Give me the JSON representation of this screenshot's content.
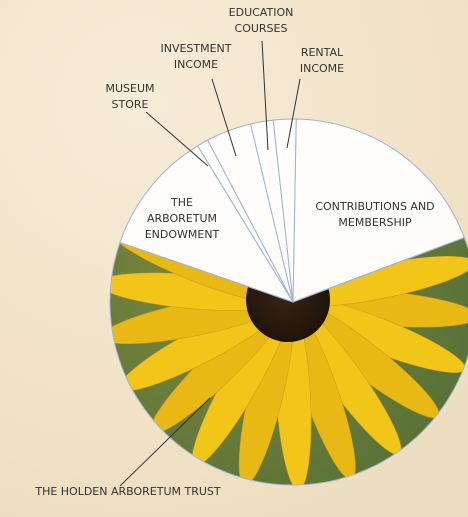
{
  "chart_data": {
    "type": "pie",
    "categories": [
      "CONTRIBUTIONS AND MEMBERSHIP",
      "THE HOLDEN ARBORETUM TRUST",
      "THE ARBORETUM ENDOWMENT",
      "MUSEUM STORE",
      "INVESTMENT INCOME",
      "EDUCATION COURSES",
      "RENTAL INCOME"
    ],
    "values": [
      19,
      61,
      11,
      1,
      4,
      2,
      2
    ]
  }
}
